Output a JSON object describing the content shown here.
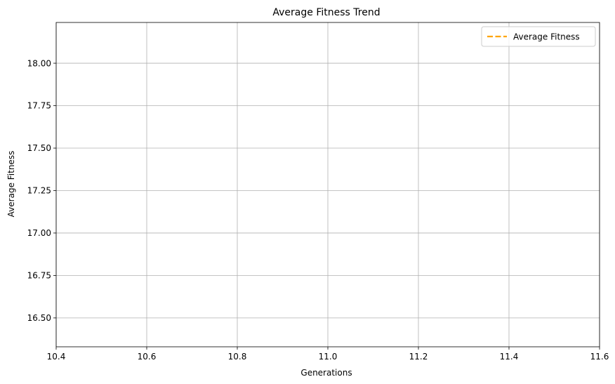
{
  "chart_data": {
    "type": "line",
    "title": "Average Fitness Trend",
    "xlabel": "Generations",
    "ylabel": "Average Fitness",
    "xlim": [
      10.4,
      11.6
    ],
    "ylim": [
      16.33,
      18.24
    ],
    "xticks": [
      10.4,
      10.6,
      10.8,
      11.0,
      11.2,
      11.4,
      11.6
    ],
    "xtick_labels": [
      "10.4",
      "10.6",
      "10.8",
      "11.0",
      "11.2",
      "11.4",
      "11.6"
    ],
    "yticks": [
      16.5,
      16.75,
      17.0,
      17.25,
      17.5,
      17.75,
      18.0
    ],
    "ytick_labels": [
      "16.50",
      "16.75",
      "17.00",
      "17.25",
      "17.50",
      "17.75",
      "18.00"
    ],
    "grid": true,
    "legend_position": "top-right",
    "series": [
      {
        "name": "Average Fitness",
        "color": "#ffa500",
        "linestyle": "dashed",
        "x": [],
        "y": []
      }
    ]
  }
}
